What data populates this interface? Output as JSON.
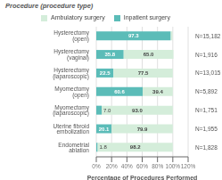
{
  "chart_data": {
    "type": "bar",
    "orientation": "horizontal",
    "stacked": true,
    "title": "Procedure (procedure type)",
    "xlabel": "Percentage of Procedures Performed",
    "categories": [
      "Hysterectomy (open)",
      "Hysterectomy (vaginal)",
      "Hysterectomy (laparoscopic)",
      "Myomectomy (open)",
      "Myomectomy (laparoscopic)",
      "Uterine fibroid embolization",
      "Endometrial ablation"
    ],
    "annotations": [
      "N=15,182",
      "N=1,916",
      "N=13,015",
      "N=5,892",
      "N=1,751",
      "N=1,955",
      "N=1,828"
    ],
    "series": [
      {
        "name": "Inpatient surgery",
        "color": "#5bbcb8",
        "values": [
          97.3,
          35.8,
          22.5,
          60.6,
          7.0,
          20.1,
          1.8
        ],
        "value_labels": [
          "97.3",
          "35.8",
          "22.5",
          "60.6",
          "7.0",
          "20.1",
          "1.8"
        ]
      },
      {
        "name": "Ambulatory surgery",
        "color": "#d4edda",
        "values": [
          2.2,
          65.0,
          77.5,
          39.4,
          93.0,
          79.9,
          98.2
        ],
        "value_labels": [
          null,
          "65.0",
          "77.5",
          "39.4",
          "93.0",
          "79.9",
          "98.2"
        ]
      }
    ],
    "xlim": [
      0,
      120
    ],
    "xticks": [
      {
        "value": 0,
        "label": "0%"
      },
      {
        "value": 20,
        "label": "20%"
      },
      {
        "value": 40,
        "label": "40%"
      },
      {
        "value": 60,
        "label": "60%"
      },
      {
        "value": 80,
        "label": "80%"
      },
      {
        "value": 100,
        "label": "100%"
      },
      {
        "value": 120,
        "label": "120%"
      }
    ],
    "grid": true,
    "data_labels": true,
    "legend": "top"
  }
}
